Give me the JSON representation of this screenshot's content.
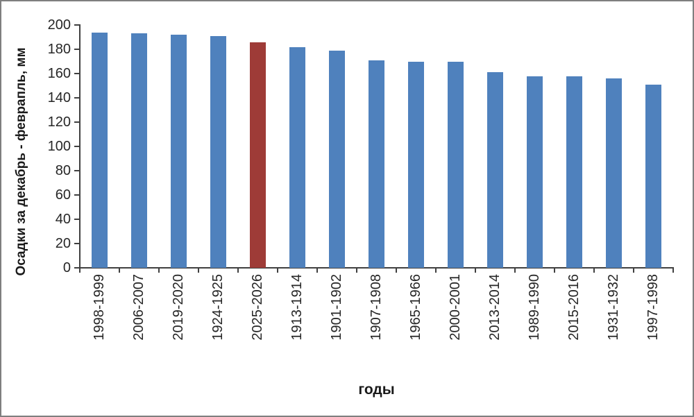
{
  "frame": {
    "background": "#ffffff",
    "border_color": "#7f7f7f"
  },
  "axis_style": {
    "line_color": "#404040",
    "text_color": "#262626"
  },
  "chart_data": {
    "type": "bar",
    "title": "",
    "xlabel": "годы",
    "ylabel": "Осадки за декабрь - феврапль, мм",
    "categories": [
      "1998-1999",
      "2006-2007",
      "2019-2020",
      "1924-1925",
      "2025-2026",
      "1913-1914",
      "1901-1902",
      "1907-1908",
      "1965-1966",
      "2000-2001",
      "2013-2014",
      "1989-1990",
      "2015-2016",
      "1931-1932",
      "1997-1998"
    ],
    "values": [
      194,
      193,
      192,
      191,
      186,
      182,
      179,
      171,
      170,
      170,
      161,
      158,
      158,
      156,
      151
    ],
    "bar_color": "#4F81BD",
    "highlight_index": 4,
    "highlight_color": "#9E3B37",
    "ylim": [
      0,
      200
    ],
    "yticks": [
      0,
      20,
      40,
      60,
      80,
      100,
      120,
      140,
      160,
      180,
      200
    ],
    "grid": false,
    "legend": false
  }
}
